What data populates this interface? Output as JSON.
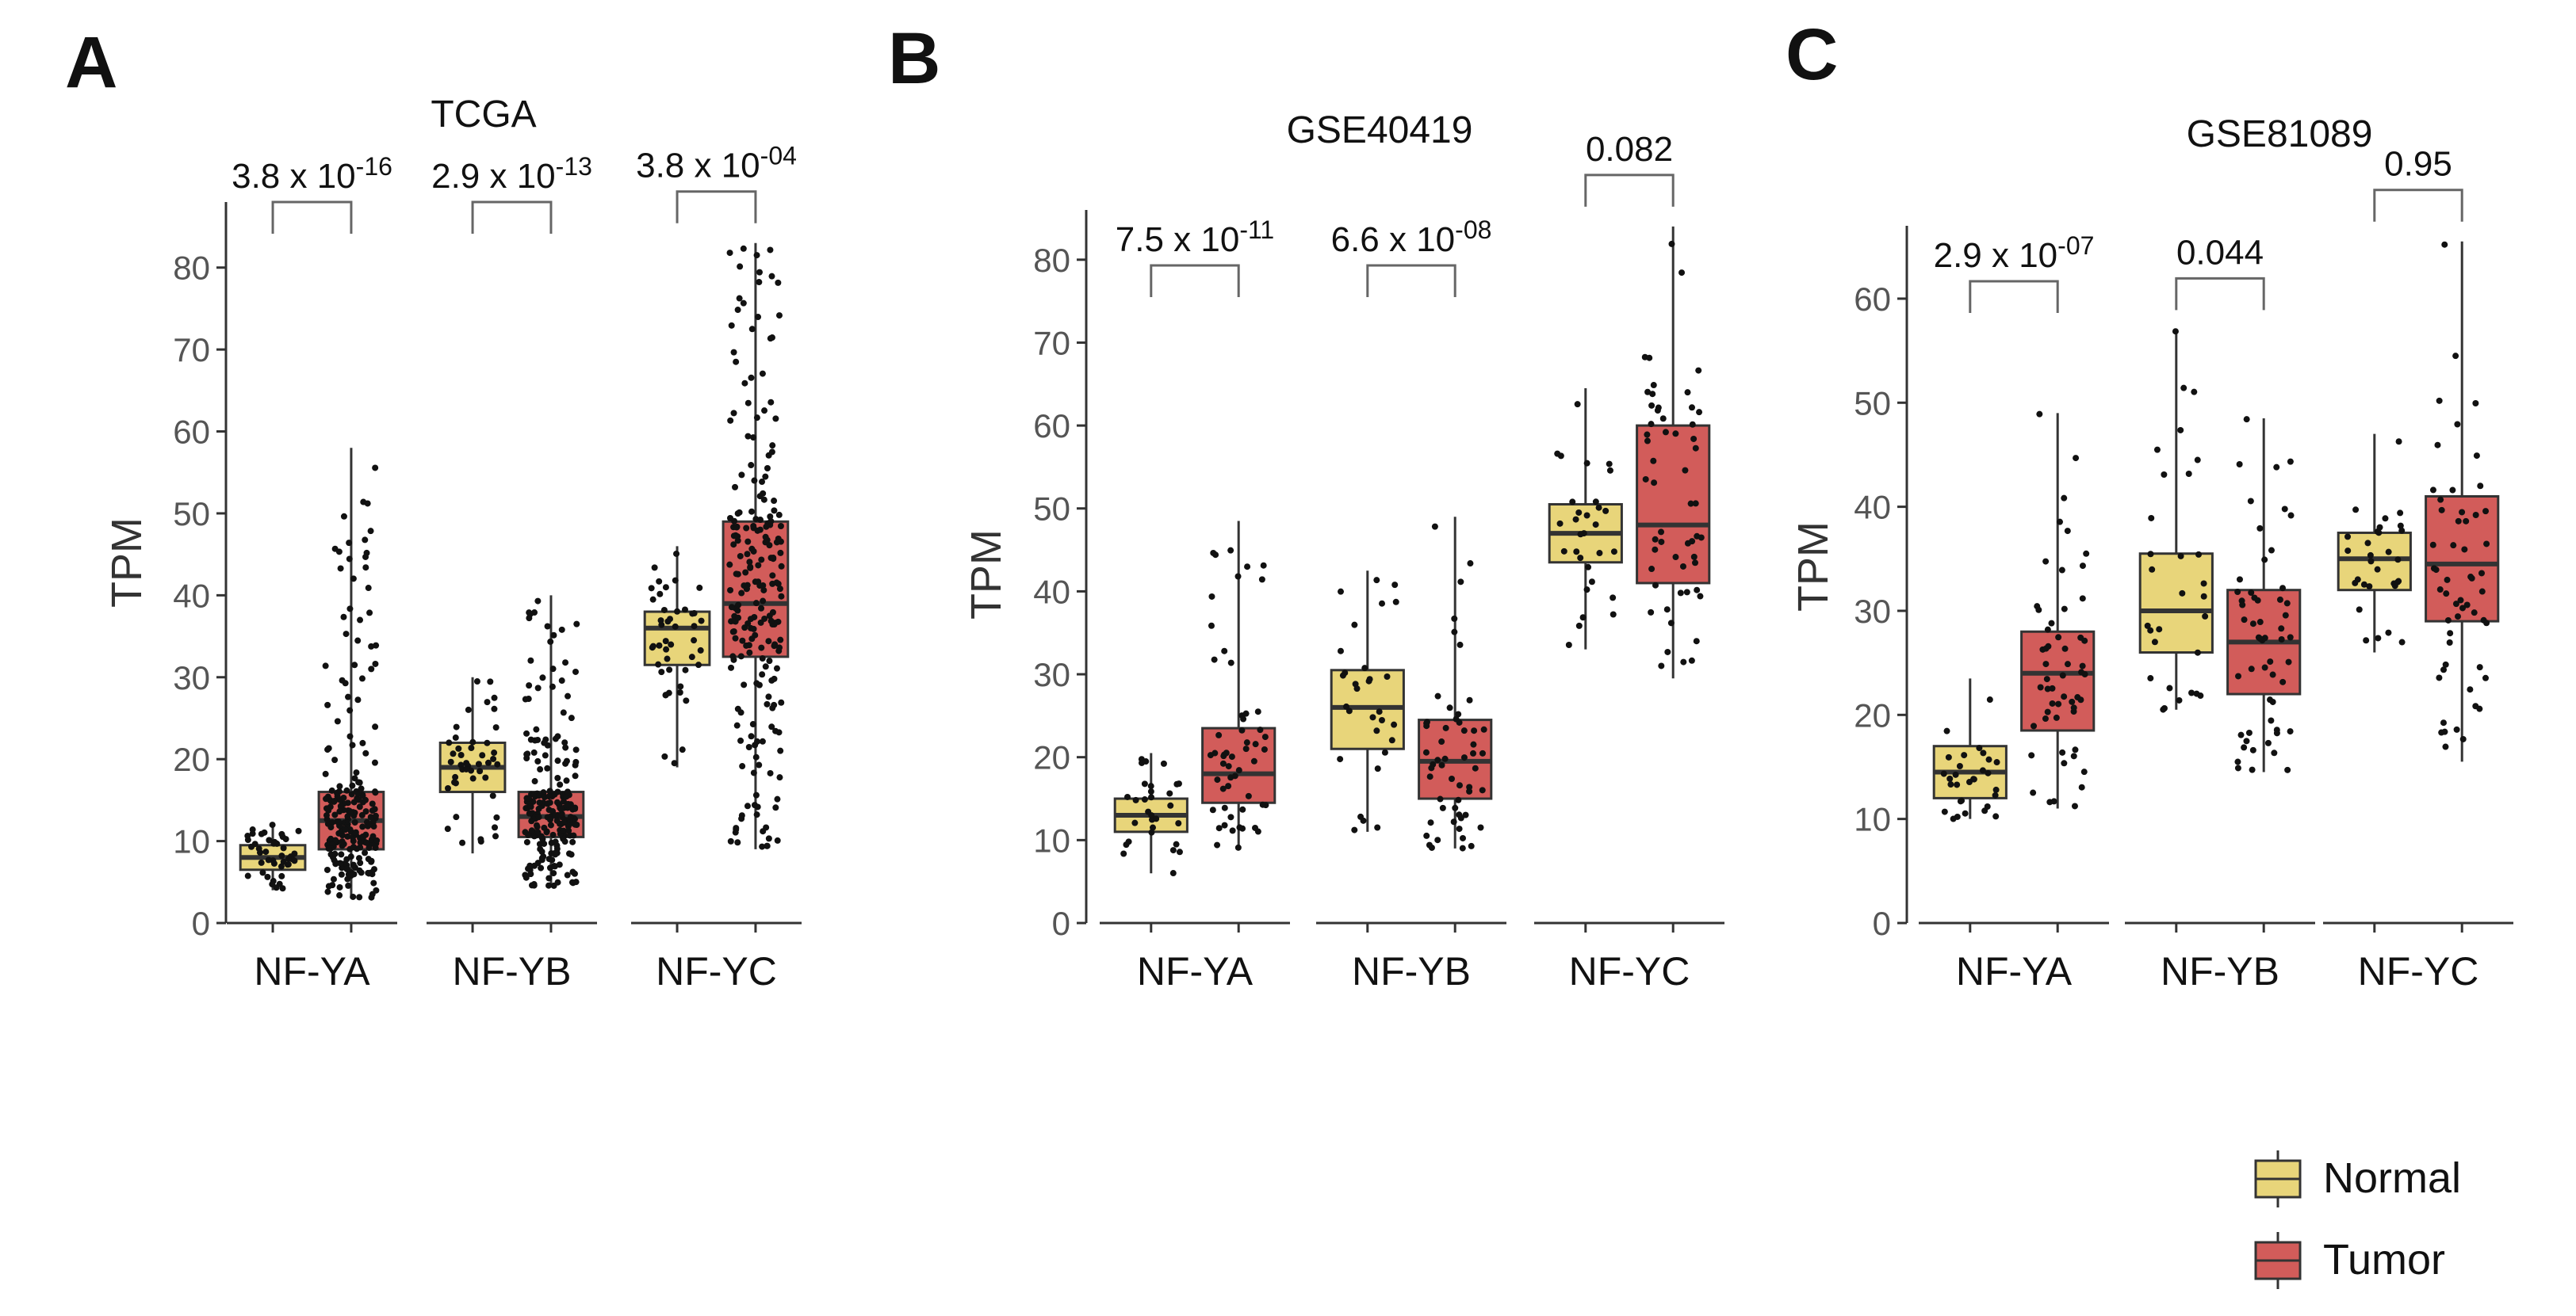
{
  "chart_data": [
    {
      "type": "box",
      "panel_label": "A",
      "title": "TCGA",
      "ylabel": "TPM",
      "ylim": [
        0,
        88
      ],
      "yticks": [
        0,
        10,
        20,
        30,
        40,
        50,
        60,
        70,
        80
      ],
      "categories": [
        "NF-YA",
        "NF-YB",
        "NF-YC"
      ],
      "series": [
        {
          "name": "Normal",
          "boxes": [
            {
              "min": 4,
              "q1": 6.5,
              "median": 8,
              "q3": 9.5,
              "max": 12
            },
            {
              "min": 8.5,
              "q1": 16,
              "median": 19,
              "q3": 22,
              "max": 30
            },
            {
              "min": 19,
              "q1": 31.5,
              "median": 36,
              "q3": 38,
              "max": 46
            }
          ]
        },
        {
          "name": "Tumor",
          "boxes": [
            {
              "min": 3,
              "q1": 9,
              "median": 12.5,
              "q3": 16,
              "max": 58
            },
            {
              "min": 4.5,
              "q1": 10.5,
              "median": 13,
              "q3": 16,
              "max": 40
            },
            {
              "min": 9,
              "q1": 32.5,
              "median": 39,
              "q3": 49,
              "max": 83
            }
          ]
        }
      ],
      "pvalues": [
        {
          "base": "3.8 x 10",
          "exp": "-16"
        },
        {
          "base": "2.9 x 10",
          "exp": "-13"
        },
        {
          "base": "3.8 x 10",
          "exp": "-04"
        }
      ]
    },
    {
      "type": "box",
      "panel_label": "B",
      "title": "GSE40419",
      "ylabel": "TPM",
      "ylim": [
        0,
        86
      ],
      "yticks": [
        0,
        10,
        20,
        30,
        40,
        50,
        60,
        70,
        80
      ],
      "categories": [
        "NF-YA",
        "NF-YB",
        "NF-YC"
      ],
      "series": [
        {
          "name": "Normal",
          "boxes": [
            {
              "min": 6,
              "q1": 11,
              "median": 13,
              "q3": 15,
              "max": 20.5
            },
            {
              "min": 11,
              "q1": 21,
              "median": 26,
              "q3": 30.5,
              "max": 42.5
            },
            {
              "min": 33,
              "q1": 43.5,
              "median": 47,
              "q3": 50.5,
              "max": 64.5
            }
          ]
        },
        {
          "name": "Tumor",
          "boxes": [
            {
              "min": 9,
              "q1": 14.5,
              "median": 18,
              "q3": 23.5,
              "max": 48.5
            },
            {
              "min": 9,
              "q1": 15,
              "median": 19.5,
              "q3": 24.5,
              "max": 49
            },
            {
              "min": 29.5,
              "q1": 41,
              "median": 48,
              "q3": 60,
              "max": 84
            }
          ]
        }
      ],
      "pvalues": [
        {
          "base": "7.5 x 10",
          "exp": "-11"
        },
        {
          "base": "6.6 x 10",
          "exp": "-08"
        },
        {
          "base": "0.082",
          "exp": ""
        }
      ]
    },
    {
      "type": "box",
      "panel_label": "C",
      "title": "GSE81089",
      "ylabel": "TPM",
      "ylim": [
        0,
        67
      ],
      "yticks": [
        0,
        10,
        20,
        30,
        40,
        50,
        60
      ],
      "categories": [
        "NF-YA",
        "NF-YB",
        "NF-YC"
      ],
      "series": [
        {
          "name": "Normal",
          "boxes": [
            {
              "min": 10,
              "q1": 12,
              "median": 14.5,
              "q3": 17,
              "max": 23.5
            },
            {
              "min": 20.5,
              "q1": 26,
              "median": 30,
              "q3": 35.5,
              "max": 57
            },
            {
              "min": 26,
              "q1": 32,
              "median": 35,
              "q3": 37.5,
              "max": 47
            }
          ]
        },
        {
          "name": "Tumor",
          "boxes": [
            {
              "min": 11,
              "q1": 18.5,
              "median": 24,
              "q3": 28,
              "max": 49
            },
            {
              "min": 14.5,
              "q1": 22,
              "median": 27,
              "q3": 32,
              "max": 48.5
            },
            {
              "min": 15.5,
              "q1": 29,
              "median": 34.5,
              "q3": 41,
              "max": 65.5
            }
          ]
        }
      ],
      "pvalues": [
        {
          "base": "2.9 x 10",
          "exp": "-07"
        },
        {
          "base": "0.044",
          "exp": ""
        },
        {
          "base": "0.95",
          "exp": ""
        }
      ]
    }
  ],
  "legend": {
    "items": [
      {
        "label": "Normal",
        "color": "#e8d57a"
      },
      {
        "label": "Tumor",
        "color": "#d25c5a"
      }
    ]
  },
  "colors": {
    "normal": "#e8d57a",
    "tumor": "#d25c5a",
    "points": "#111111",
    "axis": "#333333",
    "tick_text": "#555555",
    "bracket": "#666666"
  }
}
